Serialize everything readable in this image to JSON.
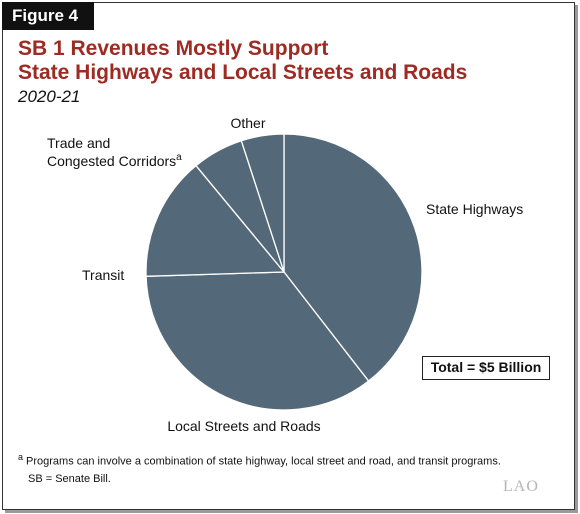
{
  "figure_label": "Figure 4",
  "title_line1": "SB 1 Revenues Mostly Support",
  "title_line2": "State Highways and Local Streets and Roads",
  "subtitle": "2020-21",
  "total_label": "Total = $5 Billion",
  "footnote_marker": "a",
  "footnote_text": "Programs can involve a combination of state highway, local street and road, and transit programs.",
  "abbreviation_note": "SB = Senate Bill.",
  "logo_text": "LAO",
  "colors": {
    "slice_fill": "#536878",
    "slice_stroke": "#ffffff",
    "title": "#9e2a24"
  },
  "chart_data": {
    "type": "pie",
    "title": "SB 1 Revenues Mostly Support State Highways and Local Streets and Roads",
    "subtitle": "2020-21",
    "total": "$5 Billion",
    "slices": [
      {
        "label": "State Highways",
        "value": 39.5,
        "superscript": ""
      },
      {
        "label": "Local Streets and Roads",
        "value": 35.0,
        "superscript": ""
      },
      {
        "label": "Transit",
        "value": 14.5,
        "superscript": ""
      },
      {
        "label": "Trade and Congested Corridors",
        "value": 6.0,
        "superscript": "a"
      },
      {
        "label": "Other",
        "value": 5.0,
        "superscript": ""
      }
    ]
  }
}
